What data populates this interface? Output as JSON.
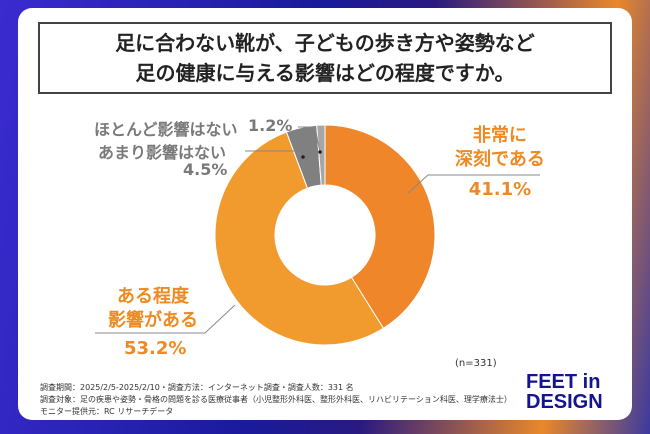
{
  "title": {
    "line1": "足に合わない靴が、子どもの歩き方や姿勢など",
    "line2": "足の健康に与える影響はどの程度ですか。"
  },
  "chart_data": {
    "type": "pie",
    "donut": true,
    "slices": [
      {
        "label_line1": "非常に",
        "label_line2": "深刻である",
        "value": 41.1,
        "value_label": "41.1%",
        "color": "#f0862a"
      },
      {
        "label_line1": "ある程度",
        "label_line2": "影響がある",
        "value": 53.2,
        "value_label": "53.2%",
        "color": "#f19b2f"
      },
      {
        "label_line1": "あまり影響はない",
        "label_line2": "",
        "value": 4.5,
        "value_label": "4.5%",
        "color": "#808080"
      },
      {
        "label_line1": "ほとんど影響はない",
        "label_line2": "",
        "value": 1.2,
        "value_label": "1.2%",
        "color": "#a6a6a6"
      }
    ],
    "sample_size": "(n=331)"
  },
  "footer": {
    "line1": "調査期間：2025/2/5-2025/2/10・調査方法：インターネット調査・調査人数：331 名",
    "line2": "調査対象：足の疾患や姿勢・骨格の問題を診る医療従事者（小児整形外科医、整形外科医、リハビリテーション科医、理学療法士）",
    "line3": "モニター提供元：RC リサーチデータ"
  },
  "logo": {
    "line1": "FEET in",
    "line2": "DESIGN"
  }
}
